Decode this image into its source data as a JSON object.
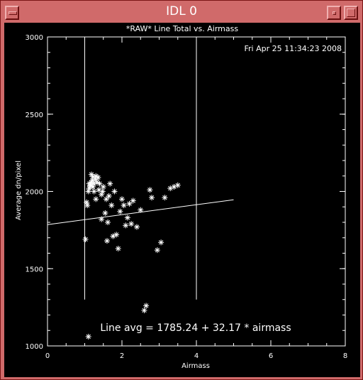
{
  "window": {
    "title": "IDL 0",
    "titlebar_color": "#d06a6a",
    "buttons": [
      "window-menu-icon",
      "minimize-icon",
      "maximize-icon"
    ]
  },
  "plot": {
    "background": "#000000",
    "foreground": "#ffffff",
    "timestamp": "Fri Apr 25 11:34:23 2008",
    "fit_annotation": "Line avg = 1785.24 + 32.17 * airmass"
  },
  "chart_data": {
    "type": "scatter",
    "title": "*RAW* Line Total vs. Airmass",
    "xlabel": "Airmass",
    "ylabel": "Average dn/pixel",
    "xlim": [
      0,
      8
    ],
    "ylim": [
      1000,
      3000
    ],
    "x_ticks": [
      "0",
      "2",
      "4",
      "6",
      "8"
    ],
    "y_ticks": [
      "1000",
      "1500",
      "2000",
      "2500",
      "3000"
    ],
    "grid": false,
    "marker": "*",
    "vertical_lines_x": [
      1.0,
      4.0
    ],
    "vertical_lines_y_range": [
      1300,
      3000
    ],
    "fit_line": {
      "intercept": 1785.24,
      "slope": 32.17,
      "x_range": [
        0,
        5
      ]
    },
    "points": [
      [
        1.02,
        1690
      ],
      [
        1.07,
        1910
      ],
      [
        1.05,
        1930
      ],
      [
        1.1,
        2000
      ],
      [
        1.12,
        2020
      ],
      [
        1.15,
        2040
      ],
      [
        1.18,
        2060
      ],
      [
        1.2,
        2070
      ],
      [
        1.22,
        2030
      ],
      [
        1.25,
        2050
      ],
      [
        1.28,
        2080
      ],
      [
        1.3,
        2100
      ],
      [
        1.33,
        2060
      ],
      [
        1.36,
        2090
      ],
      [
        1.12,
        2050
      ],
      [
        1.16,
        2035
      ],
      [
        1.22,
        2095
      ],
      [
        1.3,
        1950
      ],
      [
        1.38,
        2010
      ],
      [
        1.4,
        2050
      ],
      [
        1.45,
        1980
      ],
      [
        1.48,
        2000
      ],
      [
        1.5,
        2030
      ],
      [
        1.55,
        1860
      ],
      [
        1.58,
        1950
      ],
      [
        1.6,
        1680
      ],
      [
        1.62,
        1800
      ],
      [
        1.65,
        1970
      ],
      [
        1.68,
        2050
      ],
      [
        1.72,
        1910
      ],
      [
        1.76,
        1710
      ],
      [
        1.8,
        2000
      ],
      [
        1.85,
        1720
      ],
      [
        1.9,
        1630
      ],
      [
        1.95,
        1870
      ],
      [
        2.0,
        1950
      ],
      [
        2.05,
        1910
      ],
      [
        2.1,
        1780
      ],
      [
        2.15,
        1830
      ],
      [
        2.2,
        1920
      ],
      [
        2.25,
        1790
      ],
      [
        2.3,
        1940
      ],
      [
        2.4,
        1770
      ],
      [
        2.5,
        1880
      ],
      [
        2.6,
        1230
      ],
      [
        2.65,
        1260
      ],
      [
        2.75,
        2010
      ],
      [
        2.8,
        1960
      ],
      [
        2.95,
        1620
      ],
      [
        3.05,
        1670
      ],
      [
        3.15,
        1960
      ],
      [
        3.3,
        2020
      ],
      [
        3.4,
        2030
      ],
      [
        3.5,
        2040
      ],
      [
        1.18,
        2110
      ],
      [
        1.1,
        1060
      ],
      [
        1.45,
        1820
      ],
      [
        1.25,
        2000
      ]
    ]
  }
}
